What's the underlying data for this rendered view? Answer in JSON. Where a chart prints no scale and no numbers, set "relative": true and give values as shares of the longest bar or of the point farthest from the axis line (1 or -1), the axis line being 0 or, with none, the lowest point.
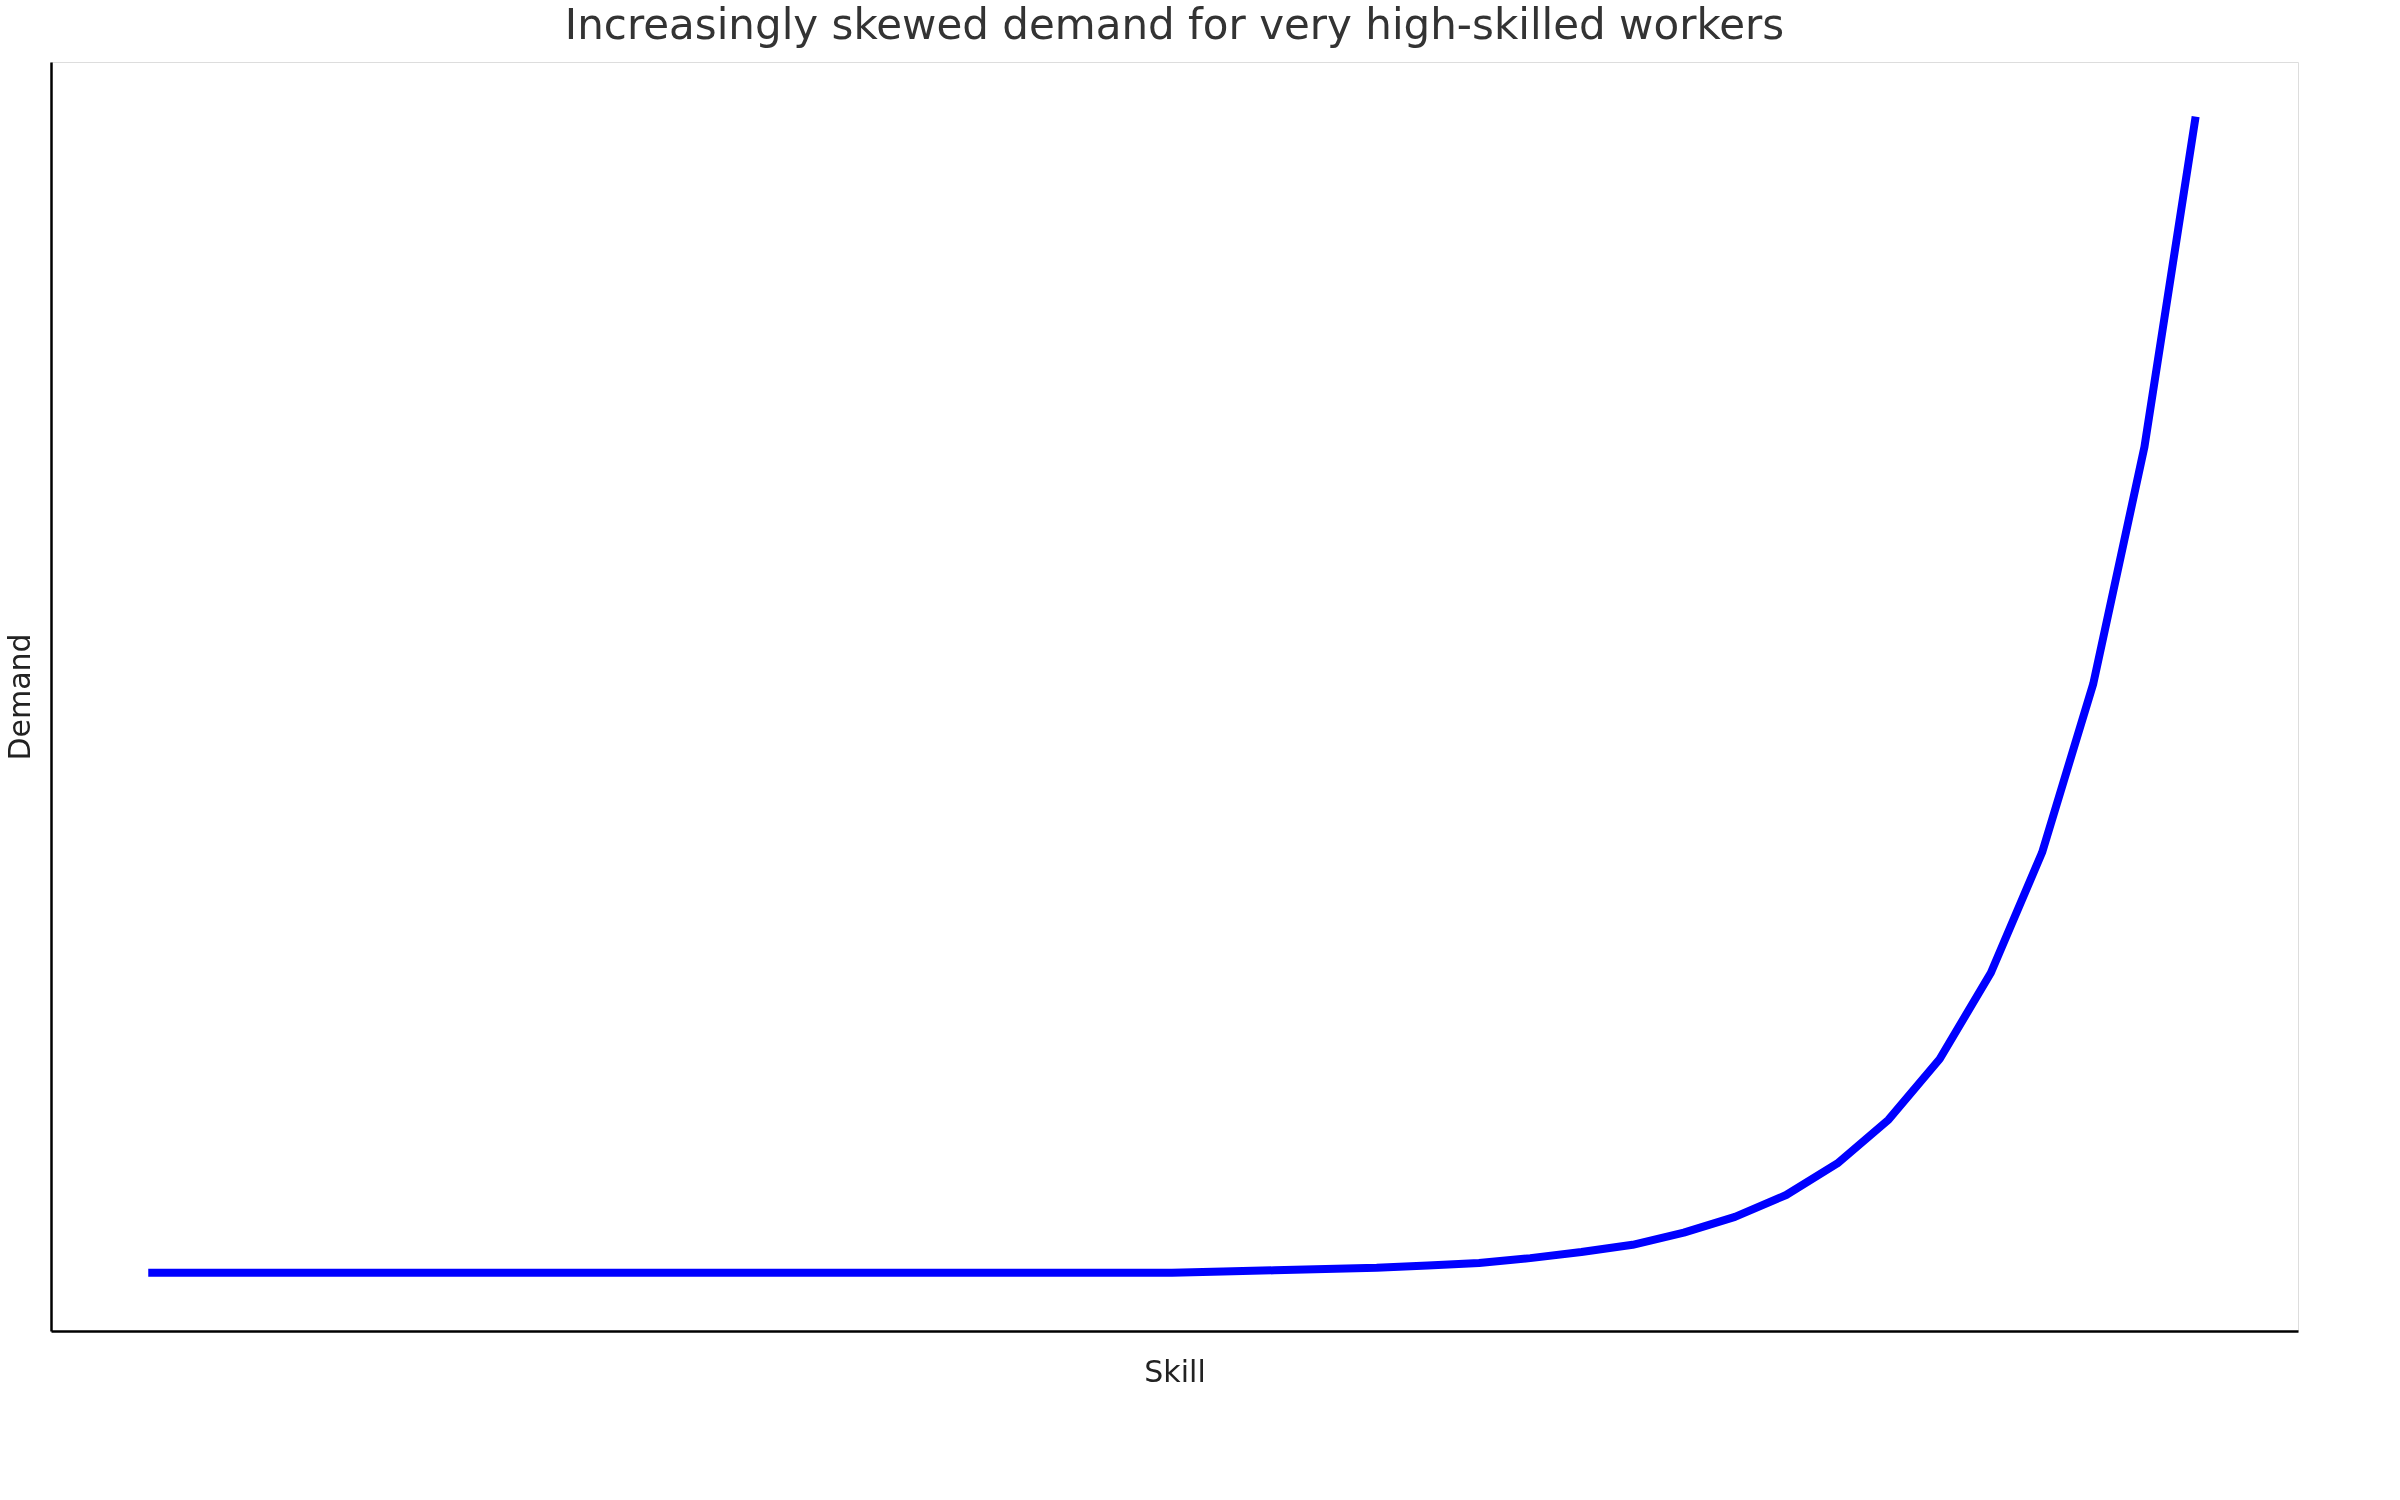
{
  "chart_data": {
    "type": "line",
    "title": "Increasingly skewed demand for very high-skilled workers",
    "xlabel": "Skill",
    "ylabel": "Demand",
    "relative": true,
    "color": "#0000ff",
    "categories": [
      null,
      null,
      null,
      null,
      null,
      null,
      null,
      null,
      null,
      null,
      null,
      null,
      null,
      null,
      null,
      null,
      null,
      null,
      null,
      null,
      null,
      null,
      null,
      null,
      null,
      null,
      null,
      null,
      null,
      null,
      null,
      null,
      null,
      null,
      null,
      null,
      null,
      null,
      null,
      null,
      null
    ],
    "values": [
      0.048,
      0.048,
      0.048,
      0.048,
      0.048,
      0.048,
      0.048,
      0.048,
      0.048,
      0.048,
      0.048,
      0.048,
      0.048,
      0.048,
      0.048,
      0.048,
      0.048,
      0.048,
      0.048,
      0.048,
      0.048,
      0.049,
      0.05,
      0.051,
      0.052,
      0.054,
      0.056,
      0.06,
      0.065,
      0.071,
      0.081,
      0.094,
      0.112,
      0.138,
      0.174,
      0.224,
      0.295,
      0.394,
      0.533,
      0.728,
      1.0
    ]
  }
}
